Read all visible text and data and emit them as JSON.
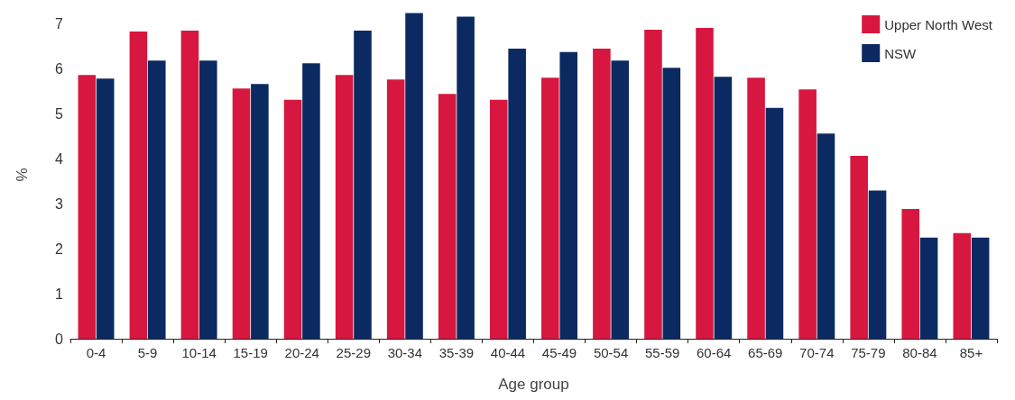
{
  "chart_data": {
    "type": "bar",
    "xlabel": "Age group",
    "ylabel": "%",
    "categories": [
      "0-4",
      "5-9",
      "10-14",
      "15-19",
      "20-24",
      "25-29",
      "30-34",
      "35-39",
      "40-44",
      "45-49",
      "50-54",
      "55-59",
      "60-64",
      "65-69",
      "70-74",
      "75-79",
      "80-84",
      "85+"
    ],
    "series": [
      {
        "name": "Upper North West",
        "color": "#d7173f",
        "values": [
          5.87,
          6.84,
          6.86,
          5.57,
          5.32,
          5.87,
          5.77,
          5.45,
          5.32,
          5.81,
          6.46,
          6.88,
          6.92,
          5.81,
          5.55,
          4.07,
          2.89,
          2.35
        ]
      },
      {
        "name": "NSW",
        "color": "#0b2a61",
        "values": [
          5.79,
          6.19,
          6.19,
          5.67,
          6.13,
          6.86,
          7.25,
          7.17,
          6.46,
          6.38,
          6.19,
          6.03,
          5.83,
          5.14,
          4.57,
          3.3,
          2.25,
          2.25
        ]
      }
    ],
    "ylim": [
      0,
      7.3
    ],
    "yticks": [
      0,
      1,
      2,
      3,
      4,
      5,
      6,
      7
    ],
    "grid": false,
    "legend": "top right"
  }
}
